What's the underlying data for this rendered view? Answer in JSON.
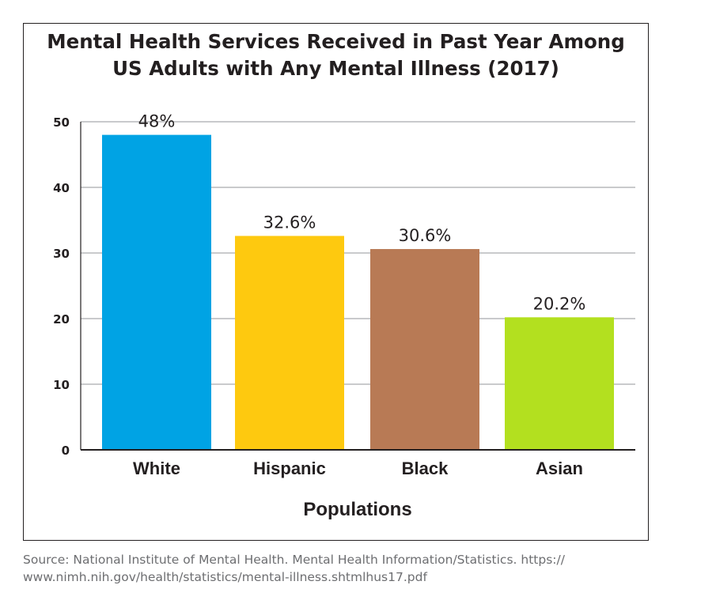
{
  "chart_data": {
    "type": "bar",
    "title": "Mental Health Services Received in Past Year Among\nUS Adults with Any Mental Illness (2017)",
    "xlabel": "Populations",
    "ylabel": "",
    "categories": [
      "White",
      "Hispanic",
      "Black",
      "Asian"
    ],
    "values": [
      48,
      32.6,
      30.6,
      20.2
    ],
    "data_labels": [
      "48%",
      "32.6%",
      "30.6%",
      "20.2%"
    ],
    "colors": [
      "#00a3e4",
      "#fec90f",
      "#b87a55",
      "#b3e01f"
    ],
    "ylim": [
      0,
      50
    ],
    "yticks": [
      0,
      10,
      20,
      30,
      40,
      50
    ],
    "grid": true
  },
  "source": "Source: National Institute of Mental Health. Mental Health Information/Statistics. https://\nwww.nimh.nih.gov/health/statistics/mental-illness.shtmlhus17.pdf"
}
